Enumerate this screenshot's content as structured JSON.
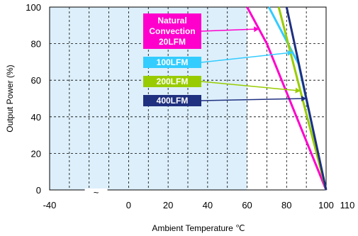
{
  "chart_data": {
    "type": "line",
    "xlabel": "Ambient Temperature ℃",
    "ylabel": "Output Power (%)",
    "xlim": [
      -40,
      110
    ],
    "ylim": [
      0,
      100
    ],
    "x_ticks": [
      {
        "value": -40,
        "label": "-40"
      },
      {
        "value": 0,
        "label": "0"
      },
      {
        "value": 20,
        "label": "20"
      },
      {
        "value": 40,
        "label": "40"
      },
      {
        "value": 60,
        "label": "60"
      },
      {
        "value": 80,
        "label": "80"
      },
      {
        "value": 100,
        "label": "100"
      },
      {
        "value": 110,
        "label": "110"
      }
    ],
    "y_ticks": [
      {
        "value": 0,
        "label": "0"
      },
      {
        "value": 20,
        "label": "20"
      },
      {
        "value": 40,
        "label": "40"
      },
      {
        "value": 60,
        "label": "60"
      },
      {
        "value": 80,
        "label": "80"
      },
      {
        "value": 100,
        "label": "100"
      }
    ],
    "axis_break_mark": "~",
    "axis_break_x": -10,
    "grid": true,
    "shaded_region": {
      "from": -40,
      "to": 60,
      "color": "#DDEFFB"
    },
    "series": [
      {
        "name": "Natural Convection 20LFM",
        "color": "#FF00CC",
        "x": [
          60,
          66,
          70,
          100
        ],
        "y": [
          100,
          88,
          80,
          0
        ],
        "label_at": 66
      },
      {
        "name": "100LFM",
        "color": "#33CCFF",
        "x": [
          71,
          86,
          100
        ],
        "y": [
          100,
          69,
          0
        ],
        "label_at": 83
      },
      {
        "name": "200LFM",
        "color": "#99CC00",
        "x": [
          76,
          100
        ],
        "y": [
          100,
          0
        ],
        "label_at": 87
      },
      {
        "name": "400LFM",
        "color": "#1F3080",
        "x": [
          80,
          100
        ],
        "y": [
          100,
          0
        ],
        "label_at": 90
      }
    ],
    "legend_tags": [
      {
        "lines": [
          "Natural",
          "Convection",
          "20LFM"
        ],
        "color": "#FF00CC",
        "target": 0
      },
      {
        "lines": [
          "100LFM"
        ],
        "color": "#33CCFF",
        "target": 1
      },
      {
        "lines": [
          "200LFM"
        ],
        "color": "#99CC00",
        "target": 2
      },
      {
        "lines": [
          "400LFM"
        ],
        "color": "#1F3080",
        "target": 3
      }
    ]
  }
}
